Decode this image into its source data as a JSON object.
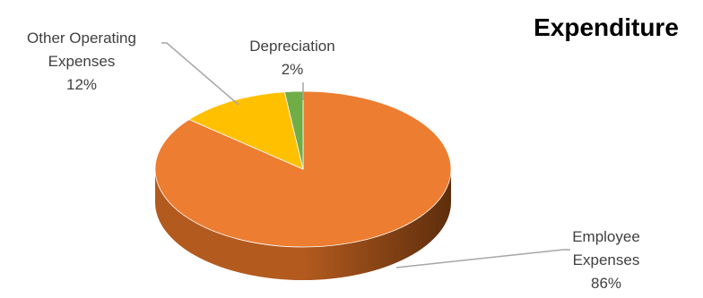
{
  "chart_data": {
    "type": "pie",
    "title": "Expenditure",
    "legend": "none",
    "slices": [
      {
        "label_lines": [
          "Employee",
          "Expenses"
        ],
        "value": 86,
        "value_label": "86%",
        "color": "#ED7D31",
        "side_color": "#B35A1F"
      },
      {
        "label_lines": [
          "Other Operating",
          "Expenses"
        ],
        "value": 12,
        "value_label": "12%",
        "color": "#FFC000",
        "side_color": "#C09000"
      },
      {
        "label_lines": [
          "Depreciation"
        ],
        "value": 2,
        "value_label": "2%",
        "color": "#70AD47",
        "side_color": "#507E32"
      }
    ]
  }
}
